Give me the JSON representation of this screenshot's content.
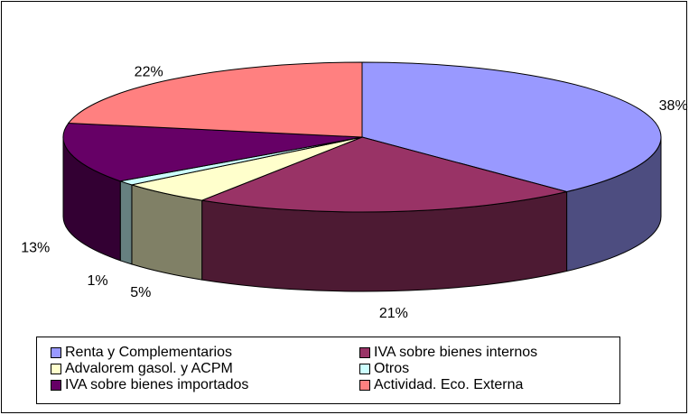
{
  "chart_data": {
    "type": "pie3d",
    "categories": [
      "Renta y Complementarios",
      "IVA sobre bienes internos",
      "Advalorem gasol. y ACPM",
      "Otros",
      "IVA sobre bienes importados",
      "Actividad. Eco. Externa"
    ],
    "values": [
      38,
      21,
      5,
      1,
      13,
      22
    ],
    "value_labels": [
      "38%",
      "21%",
      "5%",
      "1%",
      "13%",
      "22%"
    ],
    "colors": [
      "#9999ff",
      "#993366",
      "#ffffcc",
      "#ccffff",
      "#660066",
      "#ff8080"
    ],
    "legend": "bottom"
  }
}
